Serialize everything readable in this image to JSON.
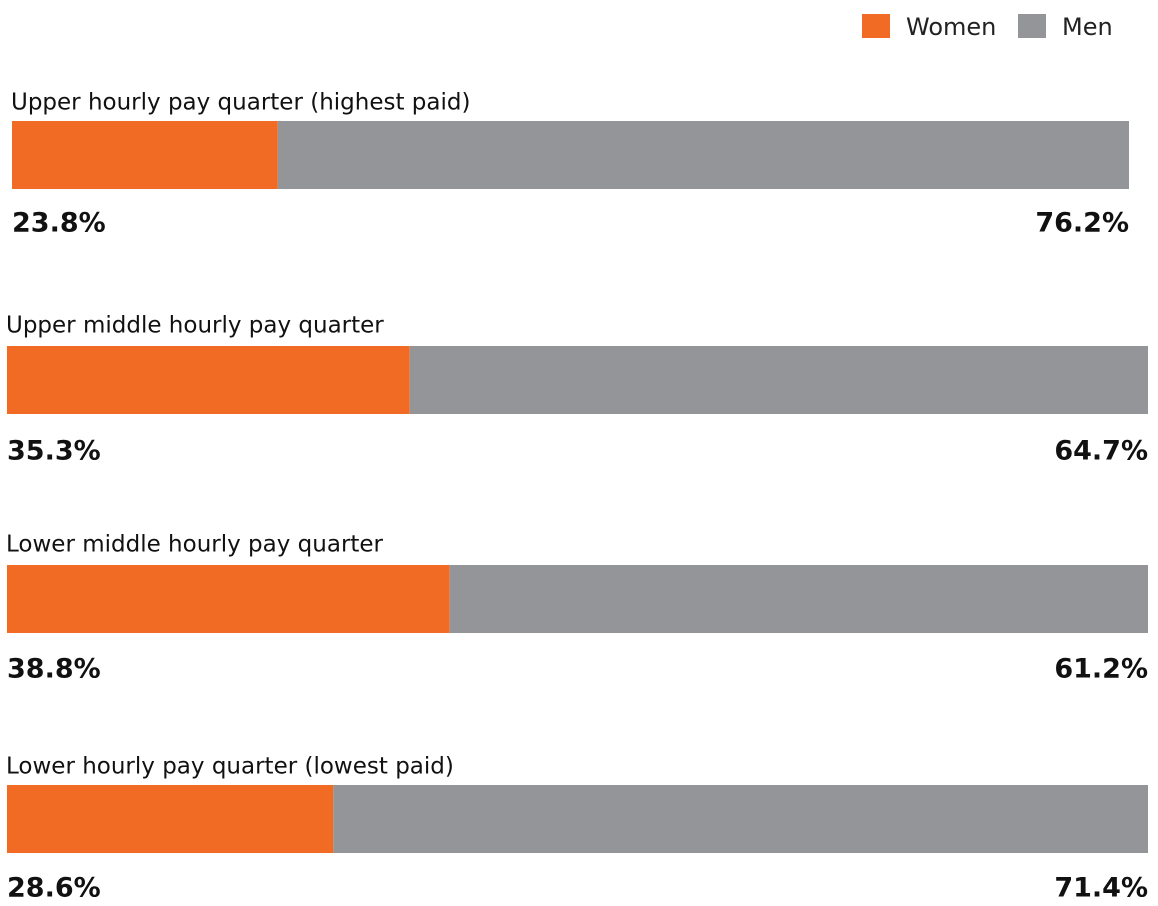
{
  "chart_data": {
    "type": "bar",
    "categories": [
      "Upper hourly pay quarter (highest paid)",
      "Upper middle hourly pay quarter",
      "Lower middle hourly pay quarter",
      "Lower hourly pay quarter (lowest paid)"
    ],
    "series": [
      {
        "name": "Women",
        "color": "#f26b25",
        "values": [
          23.8,
          35.3,
          38.8,
          28.6
        ],
        "value_labels": [
          "23.8%",
          "35.3%",
          "38.8%",
          "28.6%"
        ]
      },
      {
        "name": "Men",
        "color": "#939598",
        "values": [
          76.2,
          64.7,
          61.2,
          71.4
        ],
        "value_labels": [
          "76.2%",
          "64.7%",
          "61.2%",
          "71.4%"
        ]
      }
    ],
    "stacked": true,
    "orientation": "horizontal",
    "legend": "top-right"
  }
}
